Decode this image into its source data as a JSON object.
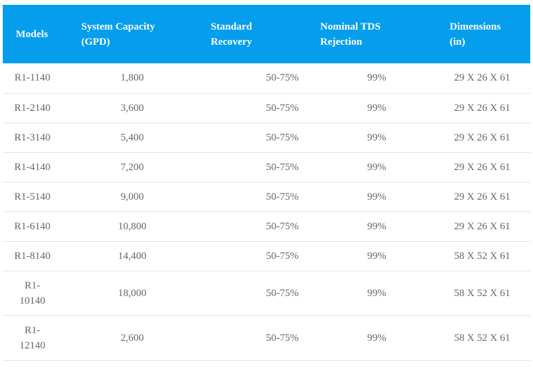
{
  "headers": {
    "models": "Models",
    "capacity": [
      "System Capacity",
      "(GPD)"
    ],
    "recovery": [
      "Standard",
      "Recovery"
    ],
    "rejection": [
      "Nominal TDS",
      "Rejection"
    ],
    "dimensions": [
      "Dimensions",
      "(in)"
    ]
  },
  "rows": [
    {
      "model": "R1-1140",
      "capacity": "1,800",
      "recovery": "50-75%",
      "rejection": "99%",
      "dimensions": "29 X 26 X 61"
    },
    {
      "model": "R1-2140",
      "capacity": "3,600",
      "recovery": "50-75%",
      "rejection": "99%",
      "dimensions": "29 X 26 X 61"
    },
    {
      "model": "R1-3140",
      "capacity": "5,400",
      "recovery": "50-75%",
      "rejection": "99%",
      "dimensions": "29 X 26 X 61"
    },
    {
      "model": "R1-4140",
      "capacity": "7,200",
      "recovery": "50-75%",
      "rejection": "99%",
      "dimensions": "29 X 26 X 61"
    },
    {
      "model": "R1-5140",
      "capacity": "9,000",
      "recovery": "50-75%",
      "rejection": "99%",
      "dimensions": "29 X 26 X 61"
    },
    {
      "model": "R1-6140",
      "capacity": "10,800",
      "recovery": "50-75%",
      "rejection": "99%",
      "dimensions": "29 X 26 X 61"
    },
    {
      "model": "R1-8140",
      "capacity": "14,400",
      "recovery": "50-75%",
      "rejection": "99%",
      "dimensions": "58 X 52 X 61"
    },
    {
      "model": [
        "R1-",
        "10140"
      ],
      "capacity": "18,000",
      "recovery": "50-75%",
      "rejection": "99%",
      "dimensions": "58 X 52 X 61"
    },
    {
      "model": [
        "R1-",
        "12140"
      ],
      "capacity": "2,600",
      "recovery": "50-75%",
      "rejection": "99%",
      "dimensions": "58 X 52 X 61"
    }
  ],
  "colors": {
    "header_bg": "#059eec",
    "header_text": "#ffffff",
    "body_text": "#666666",
    "row_border": "#e3e3e3"
  }
}
